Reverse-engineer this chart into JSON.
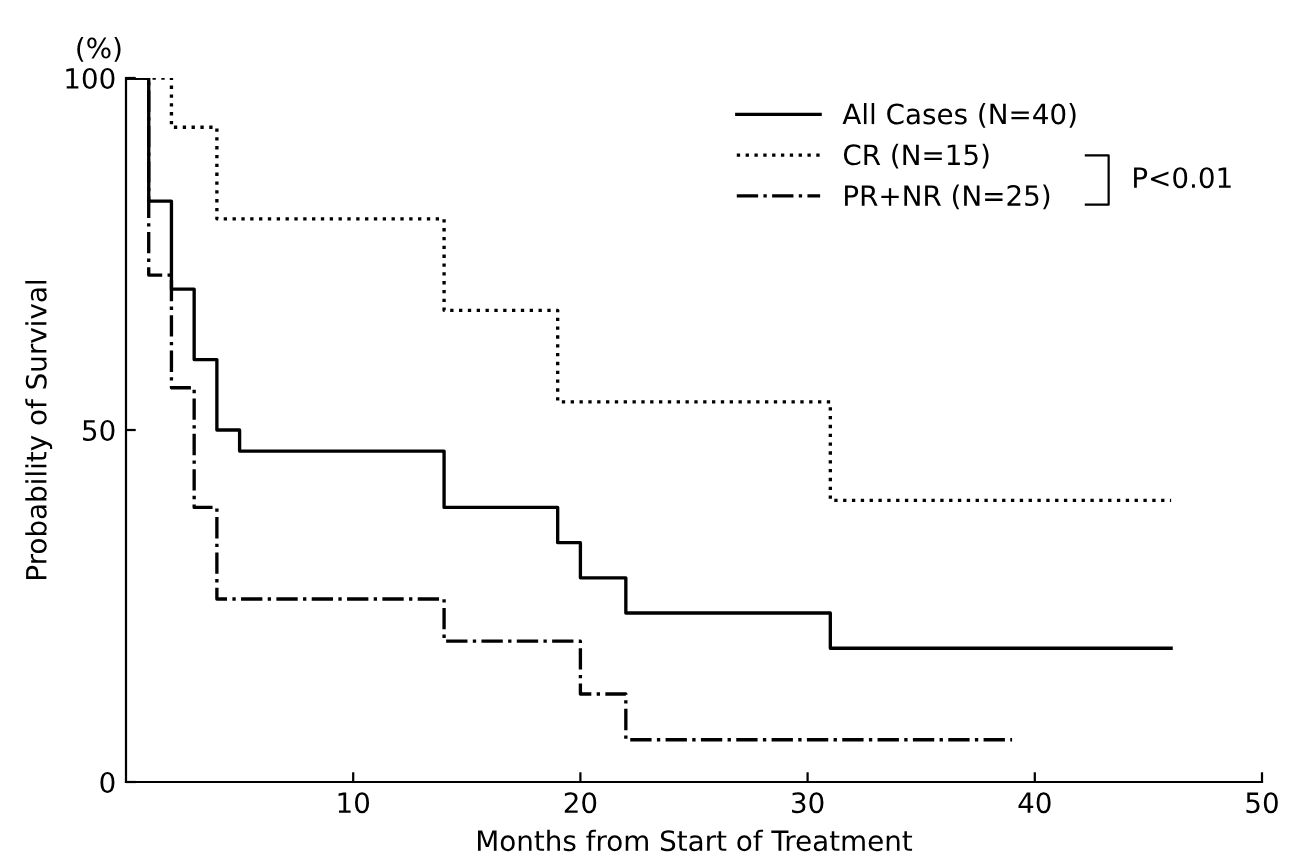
{
  "chart_data": {
    "type": "step",
    "xlabel": "Months from Start of Treatment",
    "ylabel": "Probability of Survival",
    "annotations": [
      "(%)",
      "P<0.01"
    ],
    "xlim": [
      0,
      50
    ],
    "ylim": [
      0,
      100
    ],
    "xticks": [
      10,
      20,
      30,
      40,
      50
    ],
    "yticks": [
      0,
      50,
      100
    ],
    "grid": false,
    "legend": "top right",
    "series": [
      {
        "name": "All Cases (N=40)",
        "color": "#000000",
        "line_style": "solid",
        "x": [
          0,
          1,
          2,
          3,
          4,
          5,
          14,
          19,
          20,
          22,
          31,
          46
        ],
        "values": [
          100,
          82.5,
          70,
          60,
          50,
          47,
          39,
          34,
          29,
          24,
          19,
          19
        ]
      },
      {
        "name": "CR (N=15)",
        "color": "#000000",
        "line_style": "dotted",
        "x": [
          0,
          2,
          4,
          14,
          19,
          31,
          46
        ],
        "values": [
          100,
          93,
          80,
          67,
          54,
          40,
          40
        ]
      },
      {
        "name": "PR+NR (N=25)",
        "color": "#000000",
        "line_style": "dashdot",
        "x": [
          0,
          1,
          2,
          3,
          4,
          14,
          20,
          22,
          39
        ],
        "values": [
          100,
          72,
          56,
          39,
          26,
          20,
          12.5,
          6,
          6
        ]
      }
    ]
  }
}
